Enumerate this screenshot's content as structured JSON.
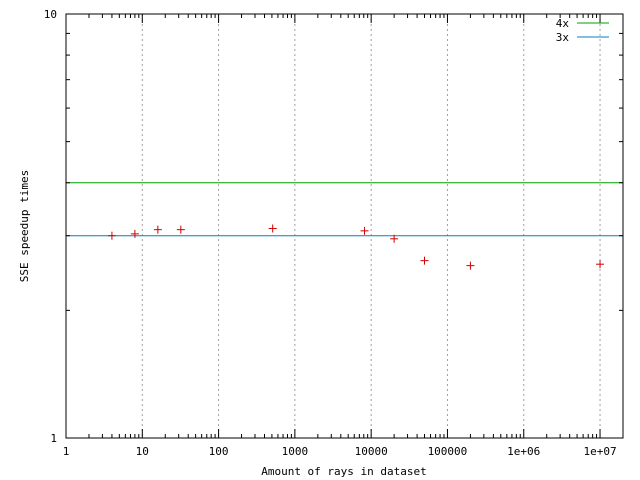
{
  "chart_data": {
    "type": "scatter",
    "title": "",
    "xlabel": "Amount of rays in dataset",
    "ylabel": "SSE speedup times",
    "xscale": "log",
    "yscale": "log",
    "xlim": [
      1,
      20000000
    ],
    "ylim": [
      1,
      10
    ],
    "xticks": [
      1,
      10,
      100,
      1000,
      10000,
      100000,
      1000000,
      10000000
    ],
    "xtick_labels": [
      "1",
      "10",
      "100",
      "1000",
      "10000",
      "100000",
      "1e+06",
      "1e+07"
    ],
    "yticks": [
      1,
      10
    ],
    "ytick_labels": [
      "1",
      "10"
    ],
    "grid": "x-major dotted",
    "legend_position": "top-right",
    "reference_lines": [
      {
        "name": "4x",
        "y": 4,
        "color": "#00a000"
      },
      {
        "name": "3x",
        "y": 3,
        "color": "#0080c0"
      }
    ],
    "points": {
      "marker": "+",
      "color": "#d00000",
      "x": [
        4,
        8,
        16,
        32,
        512,
        8192,
        20000,
        50000,
        200000,
        10000000
      ],
      "y": [
        3.0,
        3.03,
        3.1,
        3.1,
        3.12,
        3.08,
        2.95,
        2.62,
        2.55,
        2.57
      ]
    }
  }
}
